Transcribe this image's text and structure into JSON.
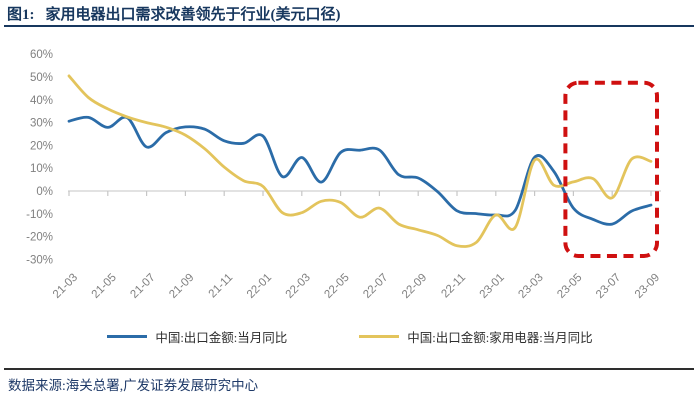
{
  "title": {
    "figure_label": "图1:",
    "text": "家用电器出口需求改善领先于行业(美元口径)"
  },
  "footer": {
    "source": "数据来源:海关总署,广发证券发展研究中心"
  },
  "colors": {
    "title_navy": "#17375e",
    "footer_navy": "#1f3a68",
    "axis_label_gray": "#808080",
    "grid_gray": "#d9d9d9",
    "series_blue": "#2b6ca8",
    "series_gold": "#e3c45c",
    "highlight_red": "#cf1010"
  },
  "legend": {
    "items": [
      {
        "label": "中国:出口金额:当月同比",
        "color": "#2b6ca8"
      },
      {
        "label": "中国:出口金额:家用电器:当月同比",
        "color": "#e3c45c"
      }
    ]
  },
  "chart_data": {
    "type": "line",
    "title": "家用电器出口需求改善领先于行业(美元口径)",
    "x": [
      "21-03",
      "21-04",
      "21-05",
      "21-06",
      "21-07",
      "21-08",
      "21-09",
      "21-10",
      "21-11",
      "21-12",
      "22-01",
      "22-02",
      "22-03",
      "22-04",
      "22-05",
      "22-06",
      "22-07",
      "22-08",
      "22-09",
      "22-10",
      "22-11",
      "22-12",
      "23-01",
      "23-02",
      "23-03",
      "23-04",
      "23-05",
      "23-06",
      "23-07",
      "23-08",
      "23-09"
    ],
    "x_tick_labels": [
      "21-03",
      "21-05",
      "21-07",
      "21-09",
      "21-11",
      "22-01",
      "22-03",
      "22-05",
      "22-07",
      "22-09",
      "22-11",
      "23-01",
      "23-03",
      "23-05",
      "23-07",
      "23-09"
    ],
    "y_ticks": [
      60,
      50,
      40,
      30,
      20,
      10,
      0,
      -10,
      -20,
      -30
    ],
    "y_tick_suffix": "%",
    "ylim": [
      -30,
      60
    ],
    "grid": "zero-line-only",
    "legend_position": "bottom",
    "line_style": "smoothed",
    "series": [
      {
        "name": "中国:出口金额:当月同比",
        "color": "#2b6ca8",
        "values": [
          30.6,
          32.3,
          27.9,
          32.2,
          19.3,
          25.6,
          28.1,
          27.1,
          22.0,
          20.9,
          24.1,
          6.3,
          14.7,
          3.9,
          16.9,
          17.9,
          18.0,
          7.1,
          5.7,
          -0.3,
          -8.7,
          -9.9,
          -10.5,
          -8.5,
          14.8,
          8.5,
          -7.5,
          -12.4,
          -14.5,
          -8.8,
          -6.2
        ]
      },
      {
        "name": "中国:出口金额:家用电器:当月同比",
        "color": "#e3c45c",
        "values": [
          50.5,
          41.0,
          36.0,
          32.5,
          30.0,
          28.0,
          24.5,
          18.5,
          10.5,
          4.5,
          2.0,
          -9.5,
          -9.5,
          -4.5,
          -5.0,
          -11.5,
          -7.5,
          -14.5,
          -17.0,
          -19.5,
          -24.0,
          -22.5,
          -10.5,
          -16.0,
          13.5,
          2.5,
          4.0,
          5.5,
          -3.0,
          14.0,
          13.0
        ]
      }
    ],
    "annotation": {
      "shape": "dashed-rounded-rect",
      "color": "#cf1010",
      "x_from": "23-05",
      "x_to": "23-09",
      "y_from": -28.5,
      "y_to": 47.5
    }
  }
}
